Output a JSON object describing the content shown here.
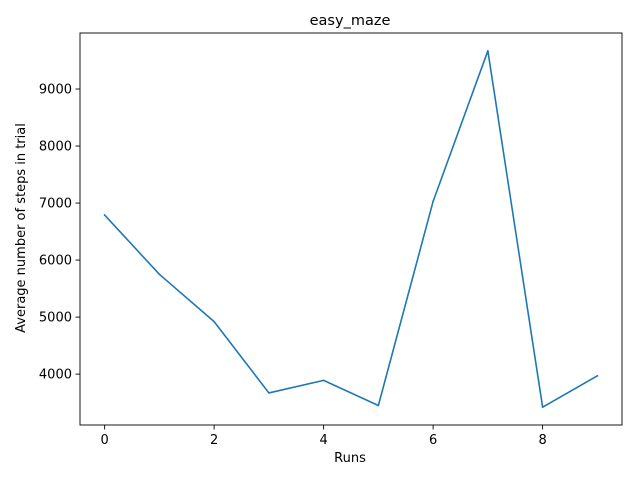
{
  "chart_data": {
    "type": "line",
    "title": "easy_maze",
    "xlabel": "Runs",
    "ylabel": "Average number of steps in trial",
    "x": [
      0,
      1,
      2,
      3,
      4,
      5,
      6,
      7,
      8,
      9
    ],
    "series": [
      {
        "values": [
          6790,
          5750,
          4920,
          3670,
          3890,
          3450,
          7030,
          9670,
          3420,
          3970
        ],
        "color": "#1f77b4"
      }
    ],
    "xticks": [
      0,
      2,
      4,
      6,
      8
    ],
    "yticks": [
      4000,
      5000,
      6000,
      7000,
      8000,
      9000
    ],
    "xlim": [
      -0.45,
      9.45
    ],
    "ylim": [
      3107.5,
      9982.5
    ],
    "grid": false,
    "legend": "none"
  }
}
